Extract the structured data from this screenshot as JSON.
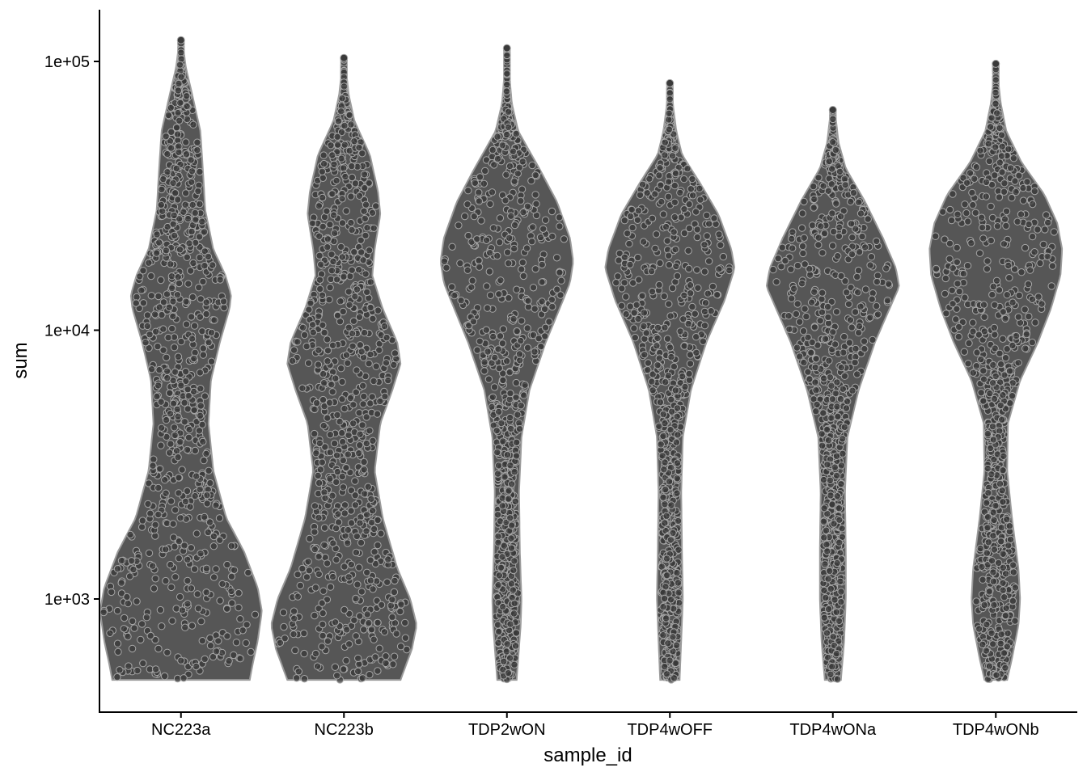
{
  "colors": {
    "background": "#ffffff",
    "violin_fill": "#565656",
    "violin_outline": "#9a9a9a",
    "point_fill": "#3a3a3a",
    "point_outline": "#a8a8a8"
  },
  "chart_data": {
    "type": "violin",
    "xlabel": "sample_id",
    "ylabel": "sum",
    "y_scale": "log10",
    "ylim": [
      375,
      160000
    ],
    "y_ticks": [
      1000,
      10000,
      100000
    ],
    "y_tick_labels": [
      "1e+03",
      "1e+04",
      "1e+05"
    ],
    "grid": false,
    "legend": "none",
    "categories": [
      "NC223a",
      "NC223b",
      "TDP2wON",
      "TDP4wOFF",
      "TDP4wONa",
      "TDP4wONb"
    ],
    "violins": [
      {
        "name": "NC223a",
        "min": 500,
        "max": 120000,
        "profile": [
          [
            500,
            85
          ],
          [
            560,
            88
          ],
          [
            700,
            95
          ],
          [
            900,
            100
          ],
          [
            1100,
            95
          ],
          [
            1500,
            78
          ],
          [
            2000,
            56
          ],
          [
            3000,
            40
          ],
          [
            4500,
            34
          ],
          [
            6500,
            37
          ],
          [
            9000,
            48
          ],
          [
            12000,
            60
          ],
          [
            13500,
            62
          ],
          [
            16000,
            55
          ],
          [
            20000,
            40
          ],
          [
            28000,
            30
          ],
          [
            40000,
            27
          ],
          [
            55000,
            24
          ],
          [
            75000,
            14
          ],
          [
            95000,
            6
          ],
          [
            112000,
            3
          ],
          [
            120000,
            2
          ]
        ]
      },
      {
        "name": "NC223b",
        "min": 500,
        "max": 103000,
        "profile": [
          [
            500,
            70
          ],
          [
            560,
            76
          ],
          [
            650,
            84
          ],
          [
            800,
            90
          ],
          [
            1000,
            82
          ],
          [
            1300,
            66
          ],
          [
            2000,
            48
          ],
          [
            3000,
            38
          ],
          [
            4500,
            45
          ],
          [
            6000,
            60
          ],
          [
            7500,
            70
          ],
          [
            9000,
            66
          ],
          [
            12000,
            48
          ],
          [
            16000,
            35
          ],
          [
            20000,
            38
          ],
          [
            27000,
            45
          ],
          [
            33000,
            42
          ],
          [
            45000,
            32
          ],
          [
            60000,
            13
          ],
          [
            75000,
            6
          ],
          [
            90000,
            3
          ],
          [
            103000,
            2
          ]
        ]
      },
      {
        "name": "TDP2wON",
        "min": 500,
        "max": 112000,
        "profile": [
          [
            500,
            12
          ],
          [
            600,
            14
          ],
          [
            800,
            17
          ],
          [
            1000,
            18
          ],
          [
            1500,
            16
          ],
          [
            2500,
            15
          ],
          [
            4000,
            18
          ],
          [
            6000,
            28
          ],
          [
            9000,
            48
          ],
          [
            12000,
            65
          ],
          [
            15000,
            78
          ],
          [
            18000,
            82
          ],
          [
            22000,
            78
          ],
          [
            30000,
            62
          ],
          [
            40000,
            40
          ],
          [
            55000,
            14
          ],
          [
            70000,
            6
          ],
          [
            90000,
            3
          ],
          [
            112000,
            2
          ]
        ]
      },
      {
        "name": "TDP4wOFF",
        "min": 500,
        "max": 83000,
        "profile": [
          [
            500,
            12
          ],
          [
            700,
            14
          ],
          [
            1000,
            16
          ],
          [
            1500,
            15
          ],
          [
            2500,
            14
          ],
          [
            4000,
            16
          ],
          [
            6000,
            26
          ],
          [
            9000,
            45
          ],
          [
            13000,
            68
          ],
          [
            17000,
            80
          ],
          [
            20000,
            76
          ],
          [
            27000,
            60
          ],
          [
            35000,
            38
          ],
          [
            45000,
            15
          ],
          [
            55000,
            8
          ],
          [
            68000,
            4
          ],
          [
            83000,
            2
          ]
        ]
      },
      {
        "name": "TDP4wONa",
        "min": 500,
        "max": 66000,
        "profile": [
          [
            500,
            10
          ],
          [
            700,
            14
          ],
          [
            1000,
            16
          ],
          [
            1500,
            16
          ],
          [
            2500,
            15
          ],
          [
            4000,
            18
          ],
          [
            6000,
            32
          ],
          [
            9000,
            52
          ],
          [
            12000,
            70
          ],
          [
            14500,
            82
          ],
          [
            17000,
            78
          ],
          [
            22000,
            62
          ],
          [
            30000,
            40
          ],
          [
            40000,
            16
          ],
          [
            50000,
            7
          ],
          [
            60000,
            4
          ],
          [
            66000,
            2
          ]
        ]
      },
      {
        "name": "TDP4wONb",
        "min": 500,
        "max": 98000,
        "profile": [
          [
            500,
            14
          ],
          [
            600,
            20
          ],
          [
            800,
            28
          ],
          [
            1000,
            30
          ],
          [
            1300,
            28
          ],
          [
            2000,
            20
          ],
          [
            3000,
            14
          ],
          [
            4500,
            15
          ],
          [
            6500,
            30
          ],
          [
            9000,
            52
          ],
          [
            12000,
            68
          ],
          [
            16000,
            80
          ],
          [
            20000,
            82
          ],
          [
            25000,
            76
          ],
          [
            32000,
            60
          ],
          [
            42000,
            32
          ],
          [
            55000,
            13
          ],
          [
            70000,
            6
          ],
          [
            85000,
            3
          ],
          [
            98000,
            2
          ]
        ]
      }
    ]
  }
}
